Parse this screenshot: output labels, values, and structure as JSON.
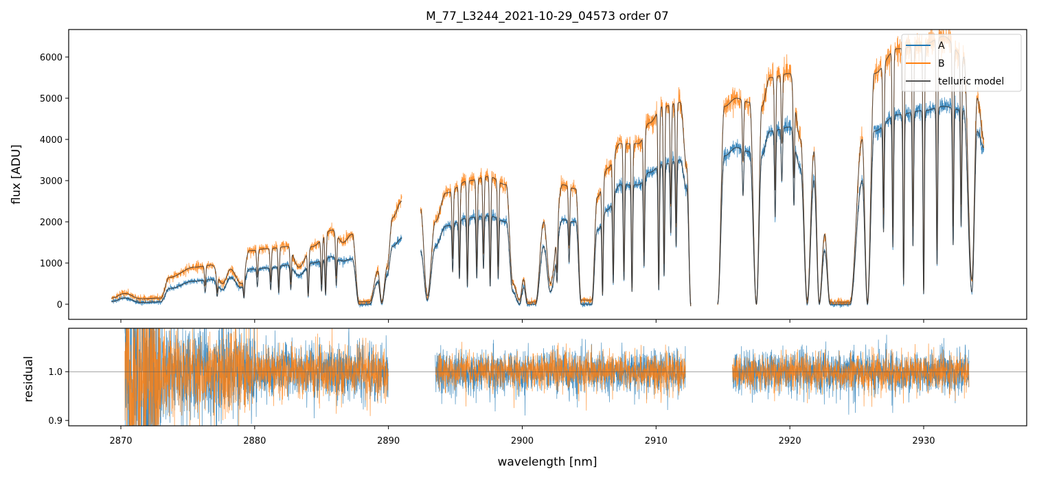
{
  "chart_data": [
    {
      "type": "line",
      "title": "M_77_L3244_2021-10-29_04573  order 07",
      "xlabel": "",
      "ylabel": "flux [ADU]",
      "xlim": [
        2866.1,
        2937.7
      ],
      "ylim": [
        -367,
        6667
      ],
      "xticks": [
        2870,
        2880,
        2890,
        2900,
        2910,
        2920,
        2930
      ],
      "yticks": [
        0,
        1000,
        2000,
        3000,
        4000,
        5000,
        6000
      ],
      "grid": false,
      "legend": {
        "placement": "top-right",
        "entries": [
          "A",
          "B",
          "telluric model"
        ]
      },
      "colors": {
        "A": "#1f77b4",
        "B": "#ff7f0e",
        "telluric model": "#333333"
      },
      "segments": [
        [
          2869.3,
          2891.0
        ],
        [
          2892.4,
          2912.6
        ],
        [
          2914.6,
          2934.5
        ]
      ],
      "continuum_knots_wavelength_B_A": [
        [
          2869.3,
          150,
          60
        ],
        [
          2870.3,
          260,
          150
        ],
        [
          2871.5,
          130,
          40
        ],
        [
          2873,
          150,
          60
        ],
        [
          2873.6,
          650,
          380
        ],
        [
          2875.5,
          900,
          560
        ],
        [
          2876.8,
          950,
          600
        ],
        [
          2877.6,
          500,
          350
        ],
        [
          2878.2,
          850,
          650
        ],
        [
          2879,
          500,
          400
        ],
        [
          2879.6,
          1300,
          850
        ],
        [
          2881,
          1350,
          880
        ],
        [
          2882.5,
          1400,
          950
        ],
        [
          2883.3,
          900,
          700
        ],
        [
          2884.3,
          1400,
          1000
        ],
        [
          2885.8,
          1800,
          1150
        ],
        [
          2886.6,
          1500,
          1050
        ],
        [
          2887.3,
          1700,
          1100
        ],
        [
          2887.8,
          60,
          0
        ],
        [
          2888.6,
          60,
          0
        ],
        [
          2889.2,
          800,
          550
        ],
        [
          2889.5,
          60,
          20
        ],
        [
          2889.9,
          900,
          700
        ],
        [
          2890.3,
          2100,
          1400
        ],
        [
          2891,
          2500,
          1600
        ],
        [
          2892.4,
          2300,
          1300
        ],
        [
          2892.9,
          200,
          100
        ],
        [
          2893.5,
          2000,
          1400
        ],
        [
          2894.3,
          2700,
          1900
        ],
        [
          2896,
          3000,
          2100
        ],
        [
          2897.5,
          3100,
          2150
        ],
        [
          2898.8,
          2900,
          2000
        ],
        [
          2899.3,
          500,
          300
        ],
        [
          2899.8,
          100,
          0
        ],
        [
          2900.1,
          600,
          400
        ],
        [
          2900.4,
          50,
          0
        ],
        [
          2901,
          50,
          0
        ],
        [
          2901.6,
          2000,
          1400
        ],
        [
          2902.1,
          500,
          300
        ],
        [
          2903,
          2900,
          2050
        ],
        [
          2904,
          2800,
          2000
        ],
        [
          2904.4,
          100,
          0
        ],
        [
          2905.2,
          100,
          0
        ],
        [
          2905.6,
          2600,
          1800
        ],
        [
          2906.4,
          3300,
          2300
        ],
        [
          2907.3,
          3900,
          2900
        ],
        [
          2908.7,
          3900,
          2900
        ],
        [
          2909.5,
          4400,
          3200
        ],
        [
          2910.5,
          4800,
          3400
        ],
        [
          2911.8,
          4900,
          3500
        ],
        [
          2912.3,
          3300,
          2800
        ],
        [
          2912.6,
          0,
          -50
        ],
        [
          2914.6,
          0,
          0
        ],
        [
          2915.1,
          4800,
          3600
        ],
        [
          2916,
          5000,
          3800
        ],
        [
          2917,
          4900,
          3700
        ],
        [
          2917.5,
          0,
          0
        ],
        [
          2917.9,
          4800,
          3600
        ],
        [
          2918.5,
          5500,
          4200
        ],
        [
          2920,
          5600,
          4300
        ],
        [
          2920.8,
          4000,
          3300
        ],
        [
          2921.3,
          100,
          0
        ],
        [
          2921.8,
          3700,
          3000
        ],
        [
          2922.2,
          50,
          0
        ],
        [
          2922.6,
          1700,
          1300
        ],
        [
          2923,
          50,
          0
        ],
        [
          2924.5,
          50,
          0
        ],
        [
          2925.4,
          4000,
          3000
        ],
        [
          2925.8,
          50,
          0
        ],
        [
          2926.3,
          5600,
          4200
        ],
        [
          2928,
          6200,
          4600
        ],
        [
          2930,
          6300,
          4700
        ],
        [
          2931.5,
          6500,
          4800
        ],
        [
          2933,
          6000,
          4700
        ],
        [
          2933.6,
          600,
          300
        ],
        [
          2934,
          5000,
          4200
        ],
        [
          2934.5,
          4000,
          3800
        ]
      ],
      "absorption_lines_wavelength_depth": [
        [
          2876.3,
          0.5
        ],
        [
          2877.2,
          0.6
        ],
        [
          2879.2,
          0.7
        ],
        [
          2880.2,
          0.5
        ],
        [
          2881.2,
          0.6
        ],
        [
          2881.8,
          0.7
        ],
        [
          2882.7,
          0.6
        ],
        [
          2884,
          0.8
        ],
        [
          2885,
          0.7
        ],
        [
          2885.3,
          0.8
        ],
        [
          2886.1,
          0.6
        ],
        [
          2894.8,
          0.6
        ],
        [
          2895.3,
          0.7
        ],
        [
          2895.9,
          0.8
        ],
        [
          2896.6,
          0.7
        ],
        [
          2897.1,
          0.6
        ],
        [
          2897.6,
          0.8
        ],
        [
          2898.2,
          0.7
        ],
        [
          2902.6,
          0.6
        ],
        [
          2903.5,
          0.5
        ],
        [
          2906,
          0.9
        ],
        [
          2906.8,
          0.8
        ],
        [
          2907.6,
          0.8
        ],
        [
          2908.2,
          0.9
        ],
        [
          2909.1,
          0.7
        ],
        [
          2910.2,
          0.9
        ],
        [
          2910.6,
          0.8
        ],
        [
          2911.1,
          0.5
        ],
        [
          2911.5,
          0.6
        ],
        [
          2916.5,
          0.3
        ],
        [
          2918.9,
          0.5
        ],
        [
          2919.4,
          0.3
        ],
        [
          2920.3,
          0.4
        ],
        [
          2927,
          0.6
        ],
        [
          2927.7,
          0.7
        ],
        [
          2928.5,
          0.9
        ],
        [
          2929.2,
          0.7
        ],
        [
          2930,
          0.95
        ],
        [
          2931,
          0.8
        ],
        [
          2932.2,
          0.7
        ],
        [
          2932.8,
          0.6
        ]
      ]
    },
    {
      "type": "line",
      "title": "",
      "xlabel": "wavelength [nm]",
      "ylabel": "residual",
      "xlim": [
        2866.1,
        2937.7
      ],
      "ylim": [
        0.889,
        1.089
      ],
      "xticks": [
        2870,
        2880,
        2890,
        2900,
        2910,
        2920,
        2930
      ],
      "xticklabels": [
        "2870",
        "2880",
        "2890",
        "2900",
        "2910",
        "2920",
        "2930"
      ],
      "yticks": [
        0.9,
        1.0
      ],
      "yticklabels": [
        "0.9",
        "1.0"
      ],
      "reference_line": 1.0,
      "segments": [
        [
          2870.3,
          2890.0
        ],
        [
          2893.5,
          2912.2
        ],
        [
          2915.7,
          2933.4
        ]
      ],
      "noise_sigma_by_range": [
        [
          2870.3,
          2873.0,
          0.15
        ],
        [
          2873.0,
          2880.0,
          0.05
        ],
        [
          2880.0,
          2890.0,
          0.03
        ],
        [
          2890.0,
          2934.0,
          0.022
        ]
      ],
      "series": [
        "A",
        "B"
      ]
    }
  ]
}
